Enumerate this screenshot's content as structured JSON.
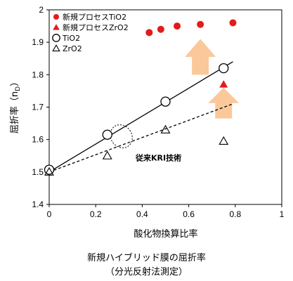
{
  "chart_data": {
    "type": "scatter",
    "xlabel": "酸化物換算比率",
    "ylabel": "屈折率（nD）",
    "ylabel_main": "屈折率",
    "ylabel_sub": "D",
    "xlim": [
      0,
      1
    ],
    "ylim": [
      1.4,
      2.0
    ],
    "x_ticks": [
      "0",
      "0.2",
      "0.4",
      "0.6",
      "0.8",
      "1"
    ],
    "y_ticks": [
      "1.4",
      "1.5",
      "1.6",
      "1.7",
      "1.8",
      "1.9",
      "2"
    ],
    "grid": false,
    "legend_position": "top-left",
    "series": [
      {
        "name": "新規プロセスTiO2",
        "marker": "filled-circle",
        "color": "#e31b1b",
        "points": [
          [
            0.43,
            1.93
          ],
          [
            0.48,
            1.94
          ],
          [
            0.55,
            1.95
          ],
          [
            0.65,
            1.955
          ],
          [
            0.79,
            1.96
          ]
        ]
      },
      {
        "name": "新規プロセスZrO2",
        "marker": "filled-triangle",
        "color": "#e31b1b",
        "points": [
          [
            0.75,
            1.77
          ]
        ]
      },
      {
        "name": "TiO2",
        "marker": "open-circle",
        "color": "#000000",
        "points": [
          [
            0,
            1.507
          ],
          [
            0.25,
            1.615
          ],
          [
            0.5,
            1.717
          ],
          [
            0.75,
            1.82
          ]
        ],
        "fit_line": {
          "style": "solid",
          "from": [
            0,
            1.5
          ],
          "to": [
            0.79,
            1.84
          ]
        }
      },
      {
        "name": "ZrO2",
        "marker": "open-triangle",
        "color": "#000000",
        "points": [
          [
            0,
            1.5
          ],
          [
            0.25,
            1.55
          ],
          [
            0.5,
            1.63
          ],
          [
            0.75,
            1.595
          ]
        ],
        "fit_line": {
          "style": "dashed",
          "from": [
            0,
            1.5
          ],
          "to": [
            0.79,
            1.71
          ]
        }
      }
    ],
    "annotations": [
      {
        "text": "従来KRI技術",
        "x": 0.47,
        "y": 1.535
      }
    ],
    "highlight_ellipse": {
      "cx": 0.31,
      "cy": 1.61,
      "rx": 0.045,
      "ry": 0.037
    },
    "arrows": [
      {
        "x": 0.65,
        "y_from": 1.8,
        "y_to": 1.91,
        "color": "#fbc89a"
      },
      {
        "x": 0.75,
        "y_from": 1.665,
        "y_to": 1.76,
        "color": "#fbc89a"
      }
    ]
  },
  "caption": {
    "line1": "新規ハイブリッド膜の屈折率",
    "line2": "（分光反射法測定）"
  }
}
